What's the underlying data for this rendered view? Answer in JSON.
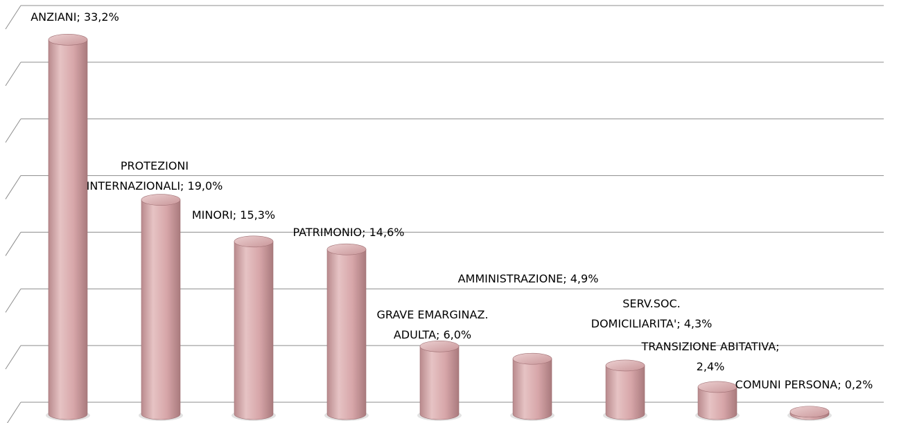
{
  "chart_data": {
    "type": "bar3d",
    "value_labels": [
      "ANZIANI; 33,2%",
      "PROTEZIONI\nINTERNAZIONALI; 19,0%",
      "MINORI; 15,3%",
      "PATRIMONIO; 14,6%",
      "GRAVE EMARGINAZ.\nADULTA; 6,0%",
      "AMMINISTRAZIONE; 4,9%",
      "SERV.SOC.\nDOMICILIARITA'; 4,3%",
      "TRANSIZIONE ABITATIVA;\n2,4%",
      "COMUNI PERSONA; 0,2%"
    ],
    "values": [
      33.2,
      19.0,
      15.3,
      14.6,
      6.0,
      4.9,
      4.3,
      2.4,
      0.2
    ],
    "color": "#d8a7aa",
    "ylim": [
      0,
      35
    ],
    "yticks": [
      0,
      5,
      10,
      15,
      20,
      25,
      30,
      35
    ],
    "grid": true
  }
}
